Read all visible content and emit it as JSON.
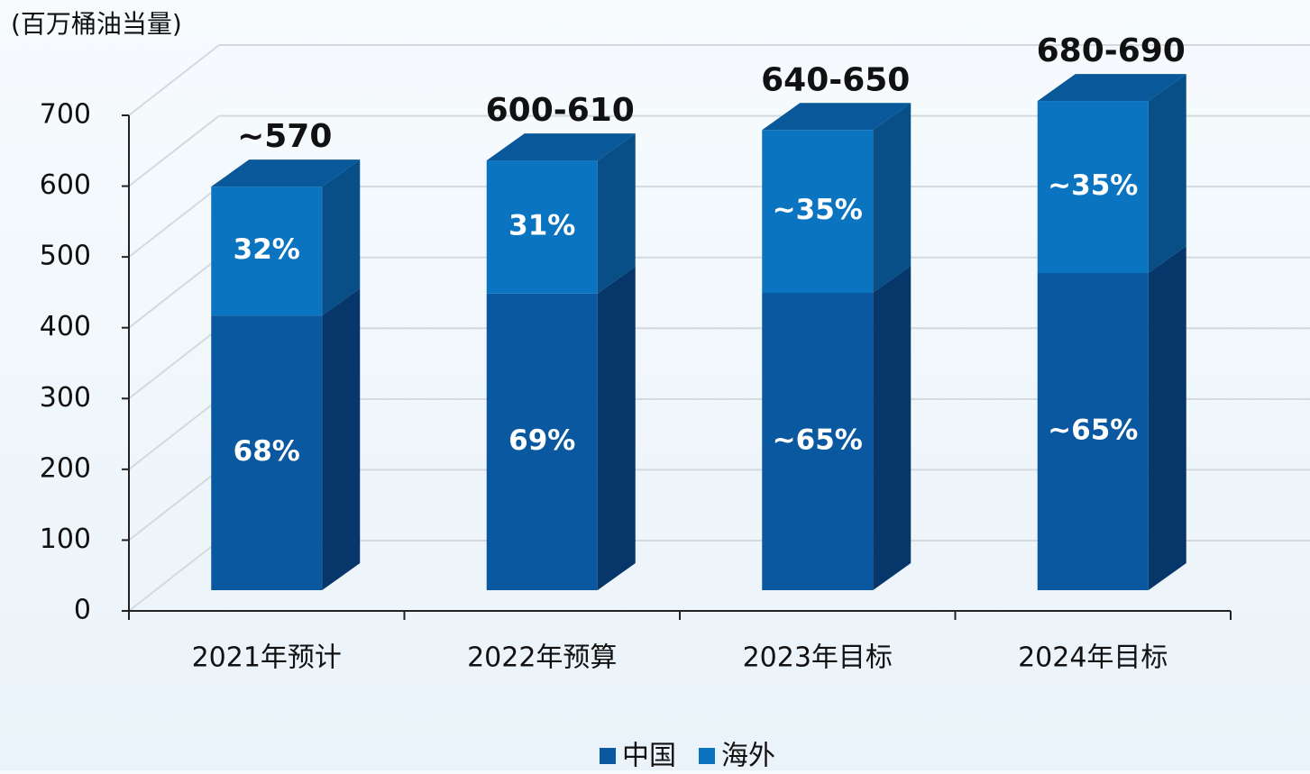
{
  "chart_data": {
    "type": "bar3d_stacked",
    "unit_label": "(百万桶油当量)",
    "categories": [
      "2021年预计",
      "2022年预算",
      "2023年目标",
      "2024年目标"
    ],
    "series": [
      {
        "name": "中国",
        "color": "#0a58a0",
        "side_color": "#06366a",
        "values": [
          388,
          419,
          420,
          448
        ],
        "share_labels": [
          "68%",
          "69%",
          "~65%",
          "~65%"
        ]
      },
      {
        "name": "海外",
        "color": "#0b74c0",
        "side_color": "#074f86",
        "values": [
          182,
          188,
          230,
          243
        ],
        "share_labels": [
          "32%",
          "31%",
          "~35%",
          "~35%"
        ]
      }
    ],
    "total_labels": [
      "~570",
      "600-610",
      "640-650",
      "680-690"
    ],
    "top_color": "#08589a",
    "ylim": [
      0,
      700
    ],
    "yticks": [
      0,
      100,
      200,
      300,
      400,
      500,
      600,
      700
    ],
    "grid": true
  }
}
